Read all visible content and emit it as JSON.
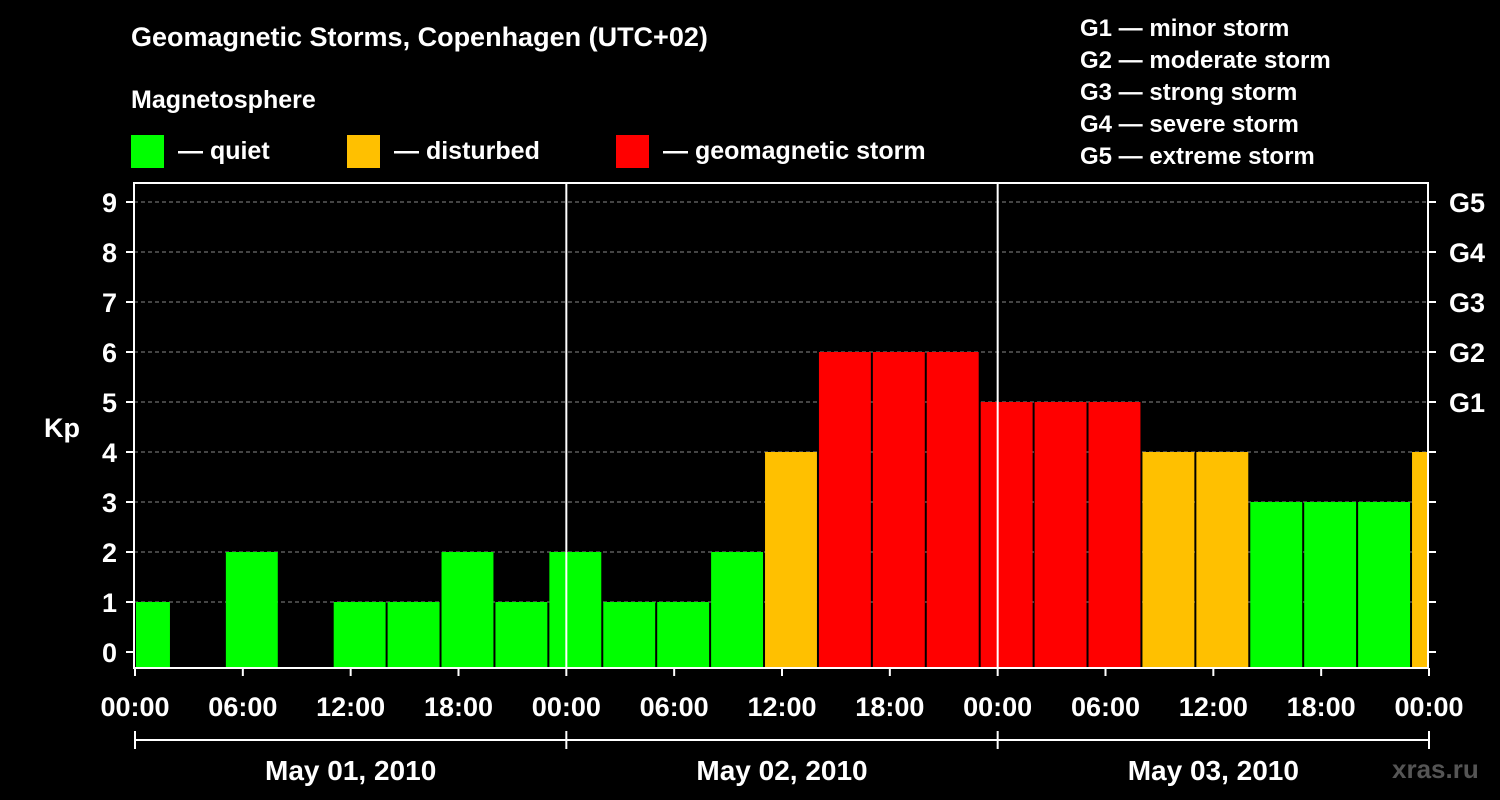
{
  "title": "Geomagnetic Storms, Copenhagen (UTC+02)",
  "subtitle": "Magnetosphere",
  "legend": [
    {
      "label": "— quiet",
      "color": "#00ff00"
    },
    {
      "label": "— disturbed",
      "color": "#ffc000"
    },
    {
      "label": "— geomagnetic storm",
      "color": "#ff0000"
    }
  ],
  "storm_scale": [
    "G1 — minor storm",
    "G2 — moderate storm",
    "G3 — strong storm",
    "G4 — severe storm",
    "G5 — extreme storm"
  ],
  "watermark": "xras.ru",
  "colors": {
    "quiet": "#00ff00",
    "disturbed": "#ffc000",
    "storm": "#ff0000",
    "background": "#000000",
    "axis": "#ffffff"
  },
  "chart_data": {
    "type": "bar",
    "ylabel": "Kp",
    "ylim": [
      0,
      9
    ],
    "yticks": [
      "0",
      "1",
      "2",
      "3",
      "4",
      "5",
      "6",
      "7",
      "8",
      "9"
    ],
    "right_ticks": [
      {
        "kp": 5,
        "label": "G1"
      },
      {
        "kp": 6,
        "label": "G2"
      },
      {
        "kp": 7,
        "label": "G3"
      },
      {
        "kp": 8,
        "label": "G4"
      },
      {
        "kp": 9,
        "label": "G5"
      }
    ],
    "x_range_hours": [
      0,
      72
    ],
    "xtick_labels": [
      "00:00",
      "06:00",
      "12:00",
      "18:00",
      "00:00",
      "06:00",
      "12:00",
      "18:00",
      "00:00",
      "06:00",
      "12:00",
      "18:00",
      "00:00"
    ],
    "days": [
      "May 01, 2010",
      "May 02, 2010",
      "May 03, 2010"
    ],
    "gridlines": "dashed horizontal",
    "bar_interval_hours": 3,
    "bars": [
      {
        "start": 0,
        "end": 2,
        "kp": 1,
        "level": "quiet"
      },
      {
        "start": 3,
        "end": 6,
        "kp": 0,
        "level": "quiet"
      },
      {
        "start": 5,
        "end": 8,
        "kp": 2,
        "level": "quiet"
      },
      {
        "start": 8,
        "end": 11,
        "kp": 0,
        "level": "quiet"
      },
      {
        "start": 11,
        "end": 14,
        "kp": 1,
        "level": "quiet"
      },
      {
        "start": 14,
        "end": 17,
        "kp": 1,
        "level": "quiet"
      },
      {
        "start": 17,
        "end": 20,
        "kp": 2,
        "level": "quiet"
      },
      {
        "start": 20,
        "end": 23,
        "kp": 1,
        "level": "quiet"
      },
      {
        "start": 23,
        "end": 26,
        "kp": 2,
        "level": "quiet"
      },
      {
        "start": 26,
        "end": 29,
        "kp": 1,
        "level": "quiet"
      },
      {
        "start": 29,
        "end": 32,
        "kp": 1,
        "level": "quiet"
      },
      {
        "start": 32,
        "end": 35,
        "kp": 2,
        "level": "quiet"
      },
      {
        "start": 35,
        "end": 38,
        "kp": 4,
        "level": "disturbed"
      },
      {
        "start": 38,
        "end": 41,
        "kp": 6,
        "level": "storm"
      },
      {
        "start": 41,
        "end": 44,
        "kp": 6,
        "level": "storm"
      },
      {
        "start": 44,
        "end": 47,
        "kp": 6,
        "level": "storm"
      },
      {
        "start": 47,
        "end": 50,
        "kp": 5,
        "level": "storm"
      },
      {
        "start": 50,
        "end": 53,
        "kp": 5,
        "level": "storm"
      },
      {
        "start": 53,
        "end": 56,
        "kp": 5,
        "level": "storm"
      },
      {
        "start": 56,
        "end": 59,
        "kp": 4,
        "level": "disturbed"
      },
      {
        "start": 59,
        "end": 62,
        "kp": 4,
        "level": "disturbed"
      },
      {
        "start": 62,
        "end": 65,
        "kp": 3,
        "level": "quiet"
      },
      {
        "start": 65,
        "end": 68,
        "kp": 3,
        "level": "quiet"
      },
      {
        "start": 68,
        "end": 71,
        "kp": 3,
        "level": "quiet"
      },
      {
        "start": 71,
        "end": 72,
        "kp": 4,
        "level": "disturbed"
      }
    ]
  }
}
